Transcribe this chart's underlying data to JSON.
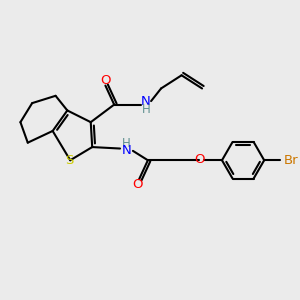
{
  "bg_color": "#ebebeb",
  "bond_color": "#000000",
  "bond_width": 1.5,
  "colors": {
    "O": "#ff0000",
    "N": "#0000ff",
    "S": "#cccc00",
    "Br": "#cc7700",
    "H": "#5f9090",
    "C": "#000000"
  },
  "figsize": [
    3.0,
    3.0
  ],
  "dpi": 100
}
